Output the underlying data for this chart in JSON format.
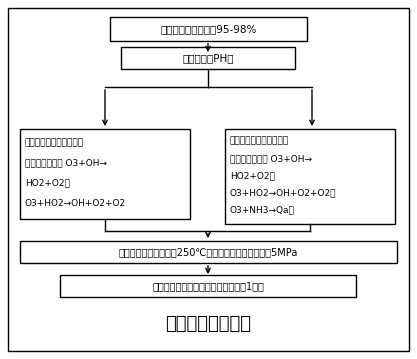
{
  "title": "催化湿式氧化处理",
  "title_fontsize": 13,
  "box1_text": "将污泥含水率调节至95-98%",
  "box2_text": "检测污泥的PH值",
  "box3_text": "当检测到污泥为酸性时，\n发生的反应为： O3+OH→\nHO2+O2；\nO3+HO2→OH+O2+O2",
  "box4_text": "当检测到污泥为碱性时，\n发生的反应为： O3+OH→\nHO2+O2；\nO3+HO2→OH+O2+O2，\nO3+NH3→Qa；",
  "box5_text": "将反应器中温度调节为250℃，将反应器中压力调节至5MPa",
  "box6_text": "对污泥进行催化湿式氧化处理时间为1小时",
  "bg_color": "#ffffff",
  "box_bg": "#ffffff",
  "box_border": "#000000",
  "text_color": "#000000",
  "arrow_color": "#000000",
  "outer_border": "#000000"
}
